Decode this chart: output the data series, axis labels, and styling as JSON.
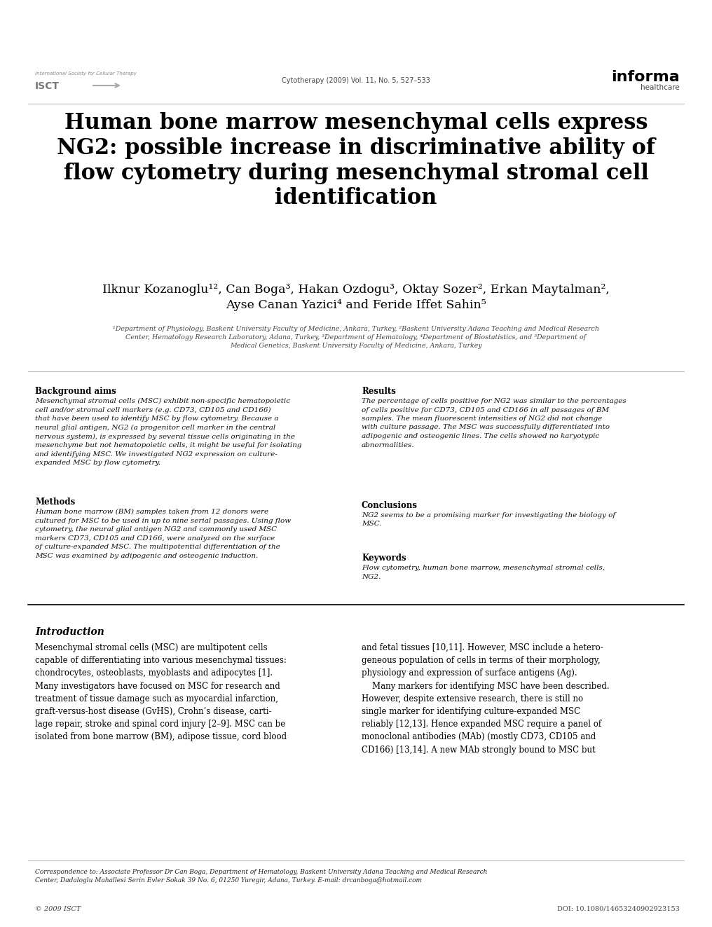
{
  "background_color": "#ffffff",
  "page_width": 10.16,
  "page_height": 13.23,
  "dpi": 100,
  "header": {
    "isct_small": "International Society for Cellular Therapy",
    "isct_large": "ISCT",
    "journal_text": "Cytotherapy (2009) Vol. 11, No. 5, 527–533",
    "informa_text": "informa",
    "healthcare_text": "healthcare"
  },
  "title": "Human bone marrow mesenchymal cells express\nNG2: possible increase in discriminative ability of\nflow cytometry during mesenchymal stromal cell\nidentification",
  "authors": "Ilknur Kozanoglu¹², Can Boga³, Hakan Ozdogu³, Oktay Sozer², Erkan Maytalman²,\nAyse Canan Yazici⁴ and Feride Iffet Sahin⁵",
  "affiliations": "¹Department of Physiology, Baskent University Faculty of Medicine, Ankara, Turkey, ²Baskent University Adana Teaching and Medical Research\nCenter, Hematology Research Laboratory, Adana, Turkey, ³Department of Hematology, ⁴Department of Biostatistics, and ⁵Department of\nMedical Genetics, Baskent University Faculty of Medicine, Ankara, Turkey",
  "abstract_sections": {
    "background_aims_title": "Background aims",
    "background_aims_text": "Mesenchymal stromal cells (MSC) exhibit non-specific hematopoietic\ncell and/or stromal cell markers (e.g. CD73, CD105 and CD166)\nthat have been used to identify MSC by flow cytometry. Because a\nneural glial antigen, NG2 (a progenitor cell marker in the central\nnervous system), is expressed by several tissue cells originating in the\nmesenchyme but not hematopoietic cells, it might be useful for isolating\nand identifying MSC. We investigated NG2 expression on culture-\nexpanded MSC by flow cytometry.",
    "methods_title": "Methods",
    "methods_text": "Human bone marrow (BM) samples taken from 12 donors were\ncultured for MSC to be used in up to nine serial passages. Using flow\ncytometry, the neural glial antigen NG2 and commonly used MSC\nmarkers CD73, CD105 and CD166, were analyzed on the surface\nof culture-expanded MSC. The multipotential differentiation of the\nMSC was examined by adipogenic and osteogenic induction.",
    "results_title": "Results",
    "results_text": "The percentage of cells positive for NG2 was similar to the percentages\nof cells positive for CD73, CD105 and CD166 in all passages of BM\nsamples. The mean fluorescent intensities of NG2 did not change\nwith culture passage. The MSC was successfully differentiated into\nadipogenic and osteogenic lines. The cells showed no karyotypic\nabnormalities.",
    "conclusions_title": "Conclusions",
    "conclusions_text": "NG2 seems to be a promising marker for investigating the biology of\nMSC.",
    "keywords_title": "Keywords",
    "keywords_text": "Flow cytometry, human bone marrow, mesenchymal stromal cells,\nNG2."
  },
  "intro_title": "Introduction",
  "intro_col1": "Mesenchymal stromal cells (MSC) are multipotent cells\ncapable of differentiating into various mesenchymal tissues:\nchondrocytes, osteoblasts, myoblasts and adipocytes [1].\nMany investigators have focused on MSC for research and\ntreatment of tissue damage such as myocardial infarction,\ngraft-versus-host disease (GvHS), Crohn’s disease, carti-\nlage repair, stroke and spinal cord injury [2–9]. MSC can be\nisolated from bone marrow (BM), adipose tissue, cord blood",
  "intro_col2": "and fetal tissues [10,11]. However, MSC include a hetero-\ngeneous population of cells in terms of their morphology,\nphysiology and expression of surface antigens (Ag).\n    Many markers for identifying MSC have been described.\nHowever, despite extensive research, there is still no\nsingle marker for identifying culture-expanded MSC\nreliably [12,13]. Hence expanded MSC require a panel of\nmonoclonal antibodies (MAb) (mostly CD73, CD105 and\nCD166) [13,14]. A new MAb strongly bound to MSC but",
  "footer_correspondence": "Correspondence to: Associate Professor Dr Can Boga, Department of Hematology, Baskent University Adana Teaching and Medical Research\nCenter, Dadaloglu Mahallesi Serin Evler Sokak 39 No. 6, 01250 Yuregir, Adana, Turkey. E-mail: drcanboga@hotmail.com",
  "footer_left": "© 2009 ISCT",
  "footer_right": "DOI: 10.1080/14653240902923153"
}
